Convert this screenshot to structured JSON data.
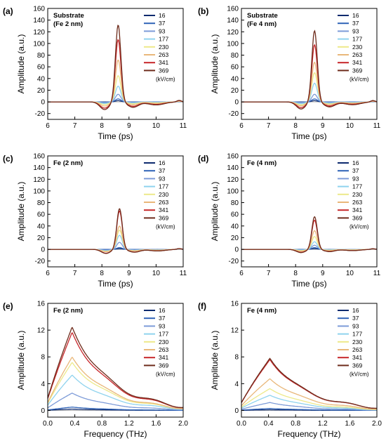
{
  "series_colors": [
    "#0d2a6e",
    "#2f63b7",
    "#7d9bd8",
    "#8fd3ee",
    "#ede98a",
    "#e9b77a",
    "#c7262a",
    "#6e2c1c"
  ],
  "legend_labels": [
    "16",
    "37",
    "93",
    "177",
    "230",
    "263",
    "341",
    "369"
  ],
  "legend_unit": "(kV/cm)",
  "chart_data": [
    {
      "type": "line",
      "panel": "(a)",
      "inset_label": [
        "Substrate",
        "(Fe 2 nm)"
      ],
      "xlabel": "Time (ps)",
      "ylabel": "Amplitude (a.u.)",
      "xlim": [
        6,
        11
      ],
      "ylim": [
        -30,
        160
      ],
      "xticks": [
        "6",
        "7",
        "8",
        "9",
        "10",
        "11"
      ],
      "yticks": [
        "-20",
        "0",
        "20",
        "40",
        "60",
        "80",
        "100",
        "120",
        "140",
        "160"
      ],
      "peak_x": 8.6,
      "peaks": [
        2,
        5,
        13,
        27,
        45,
        72,
        107,
        132
      ]
    },
    {
      "type": "line",
      "panel": "(b)",
      "inset_label": [
        "Substrate",
        "(Fe 4 nm)"
      ],
      "xlabel": "Time (ps)",
      "ylabel": "Amplitude (a.u.)",
      "xlim": [
        6,
        11
      ],
      "ylim": [
        -30,
        160
      ],
      "xticks": [
        "6",
        "7",
        "8",
        "9",
        "10",
        "11"
      ],
      "yticks": [
        "-20",
        "0",
        "20",
        "40",
        "60",
        "80",
        "100",
        "120",
        "140",
        "160"
      ],
      "peak_x": 8.7,
      "peaks": [
        2,
        5,
        13,
        32,
        50,
        68,
        98,
        122
      ]
    },
    {
      "type": "line",
      "panel": "(c)",
      "inset_label": [
        "Fe (2 nm)"
      ],
      "xlabel": "Time (ps)",
      "ylabel": "Amplitude (a.u.)",
      "xlim": [
        6,
        11
      ],
      "ylim": [
        -30,
        160
      ],
      "xticks": [
        "6",
        "7",
        "8",
        "9",
        "10",
        "11"
      ],
      "yticks": [
        "-20",
        "0",
        "20",
        "40",
        "60",
        "80",
        "100",
        "120",
        "140",
        "160"
      ],
      "peak_x": 8.65,
      "peaks": [
        1,
        3,
        12,
        24,
        33,
        40,
        66,
        70
      ]
    },
    {
      "type": "line",
      "panel": "(d)",
      "inset_label": [
        "Fe (4 nm)"
      ],
      "xlabel": "Time (ps)",
      "ylabel": "Amplitude (a.u.)",
      "xlim": [
        6,
        11
      ],
      "ylim": [
        -30,
        160
      ],
      "xticks": [
        "6",
        "7",
        "8",
        "9",
        "10",
        "11"
      ],
      "yticks": [
        "-20",
        "0",
        "20",
        "40",
        "60",
        "80",
        "100",
        "120",
        "140",
        "160"
      ],
      "peak_x": 8.7,
      "peaks": [
        1,
        3,
        7,
        13,
        22,
        32,
        50,
        56
      ]
    },
    {
      "type": "line",
      "panel": "(e)",
      "inset_label": [
        "Fe (2 nm)"
      ],
      "xlabel": "Frequency (THz)",
      "ylabel": "Amplitude (a.u.)",
      "xlim": [
        0,
        2
      ],
      "ylim": [
        -1,
        16
      ],
      "xticks": [
        "0.0",
        "0.4",
        "0.8",
        "1.2",
        "1.6",
        "2.0"
      ],
      "yticks": [
        "0",
        "4",
        "8",
        "12",
        "16"
      ],
      "peak_x": 0.36,
      "peaks": [
        0.2,
        0.5,
        2.6,
        5.3,
        7.2,
        8.0,
        11.7,
        12.5
      ]
    },
    {
      "type": "line",
      "panel": "(f)",
      "inset_label": [
        "Fe (4 nm)"
      ],
      "xlabel": "Frequency (THz)",
      "ylabel": "Amplitude (a.u.)",
      "xlim": [
        0,
        2
      ],
      "ylim": [
        -1,
        16
      ],
      "xticks": [
        "0.0",
        "0.4",
        "0.8",
        "1.2",
        "1.6",
        "2.0"
      ],
      "yticks": [
        "0",
        "4",
        "8",
        "12",
        "16"
      ],
      "peak_x": 0.42,
      "peaks": [
        0.1,
        0.3,
        1.2,
        2.3,
        3.3,
        4.8,
        7.7,
        7.9
      ]
    }
  ]
}
